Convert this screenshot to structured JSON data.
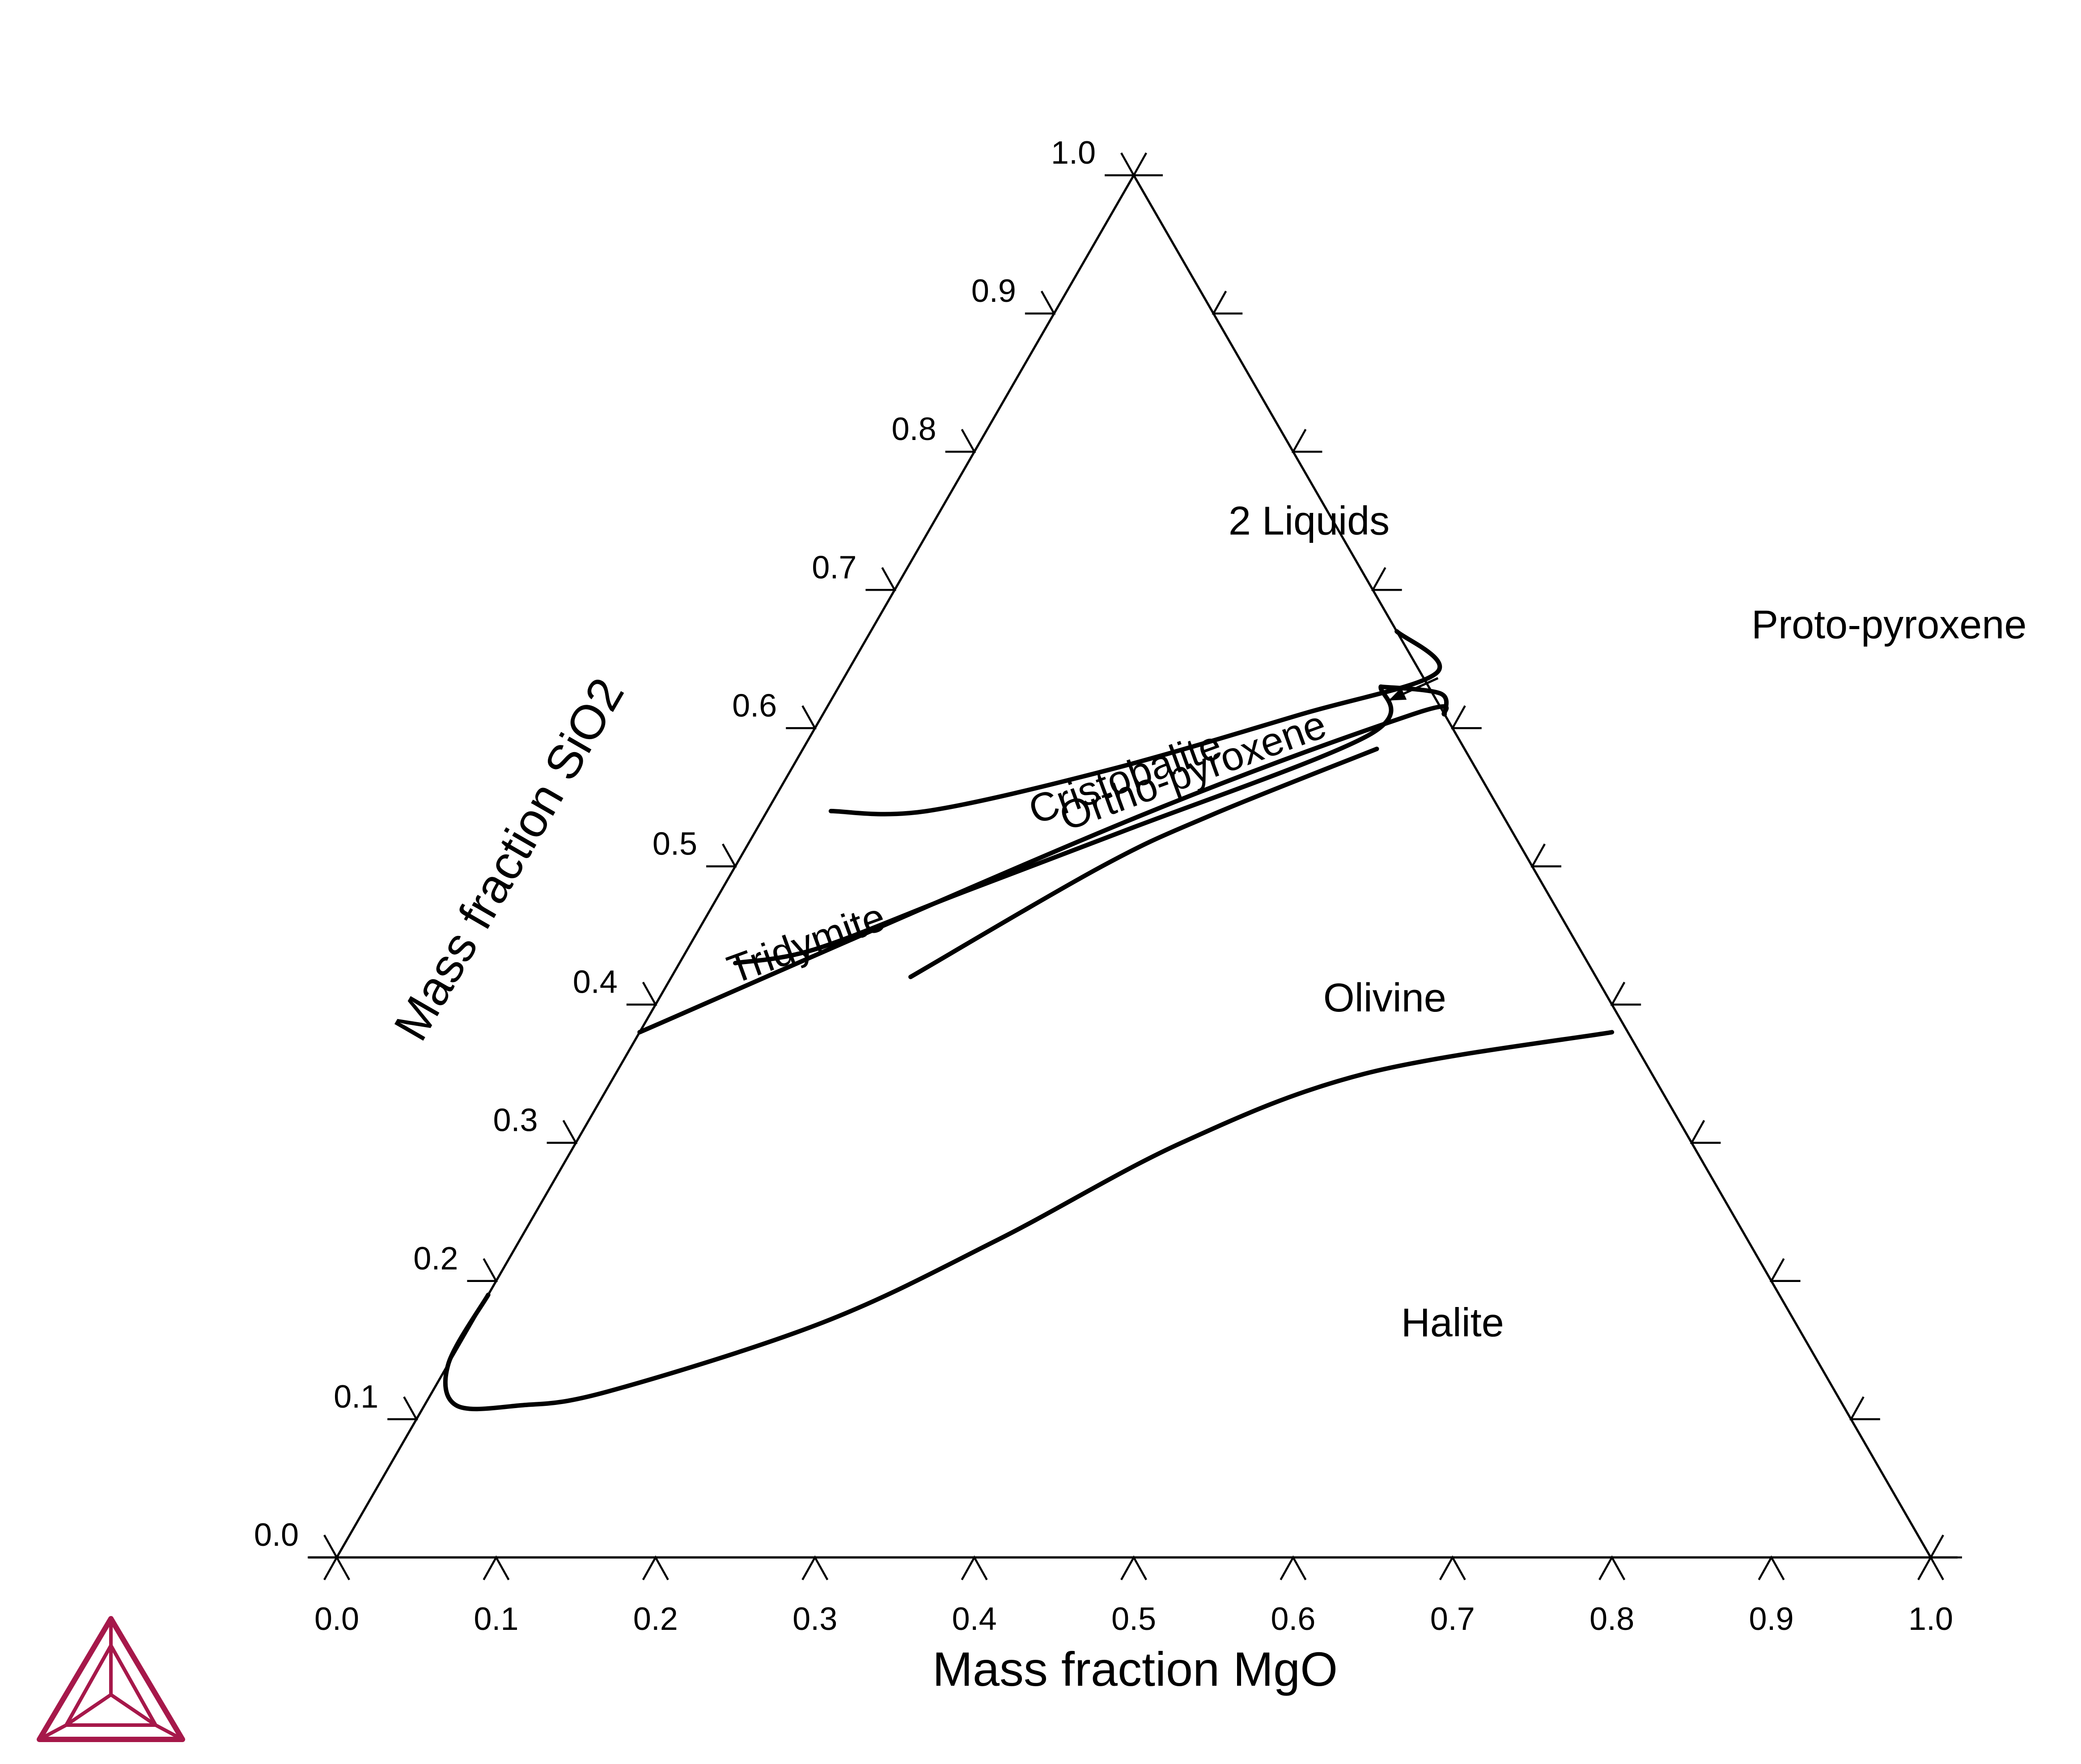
{
  "chart_data": {
    "type": "ternary-phase-diagram",
    "xlabel": "Mass fraction MgO",
    "ylabel": "Mass fraction SiO2",
    "xlim": [
      0,
      1
    ],
    "ylim": [
      0,
      1
    ],
    "x_ticks": [
      "0.0",
      "0.1",
      "0.2",
      "0.3",
      "0.4",
      "0.5",
      "0.6",
      "0.7",
      "0.8",
      "0.9",
      "1.0"
    ],
    "y_ticks": [
      "0.0",
      "0.1",
      "0.2",
      "0.3",
      "0.4",
      "0.5",
      "0.6",
      "0.7",
      "0.8",
      "0.9",
      "1.0"
    ],
    "regions": [
      {
        "label": "2 Liquids",
        "x": 0.24,
        "y": 0.74
      },
      {
        "label": "Cristobalite",
        "x": 0.22,
        "y": 0.555
      },
      {
        "label": "Tridymite",
        "x": 0.08,
        "y": 0.435
      },
      {
        "label": "Ortho-pyroxene",
        "x": 0.26,
        "y": 0.56
      },
      {
        "label": "Olivine",
        "x": 0.46,
        "y": 0.395
      },
      {
        "label": "Halite",
        "x": 0.62,
        "y": 0.16
      },
      {
        "label": "Proto-pyroxene",
        "x": 0.555,
        "y": 0.665
      }
    ],
    "boundaries": [
      {
        "points": [
          [
            0.04,
            0.54
          ],
          [
            0.1,
            0.54
          ],
          [
            0.2,
            0.57
          ],
          [
            0.3,
            0.61
          ],
          [
            0.37,
            0.64
          ],
          [
            0.33,
            0.67
          ]
        ]
      },
      {
        "points": [
          [
            0.035,
            0.43
          ],
          [
            0.08,
            0.44
          ],
          [
            0.15,
            0.48
          ],
          [
            0.23,
            0.525
          ],
          [
            0.35,
            0.595
          ],
          [
            0.34,
            0.63
          ]
        ]
      },
      {
        "points": [
          [
            0.15,
            0.42
          ],
          [
            0.23,
            0.5
          ],
          [
            0.28,
            0.537
          ],
          [
            0.36,
            0.585
          ]
        ]
      },
      {
        "points": [
          [
            0.39,
            0.61
          ],
          [
            0.38,
            0.625
          ],
          [
            0.34,
            0.63
          ]
        ]
      },
      {
        "points": [
          [
            0.39,
            0.61
          ],
          [
            0.37,
            0.61
          ],
          [
            0.23,
            0.533
          ],
          [
            0.0,
            0.38
          ]
        ]
      },
      {
        "points": [
          [
            0.0,
            0.19
          ],
          [
            0.0,
            0.14
          ],
          [
            0.02,
            0.11
          ],
          [
            0.06,
            0.11
          ],
          [
            0.11,
            0.12
          ],
          [
            0.22,
            0.17
          ],
          [
            0.3,
            0.23
          ],
          [
            0.38,
            0.3
          ],
          [
            0.47,
            0.35
          ],
          [
            0.61,
            0.38
          ]
        ]
      }
    ],
    "annotations": [
      {
        "text": "Proto-pyroxene",
        "arrow_to": [
          0.35,
          0.62
        ]
      }
    ]
  },
  "logo": {
    "name": "thermo-calc-logo-icon",
    "color": "#A6184A"
  }
}
